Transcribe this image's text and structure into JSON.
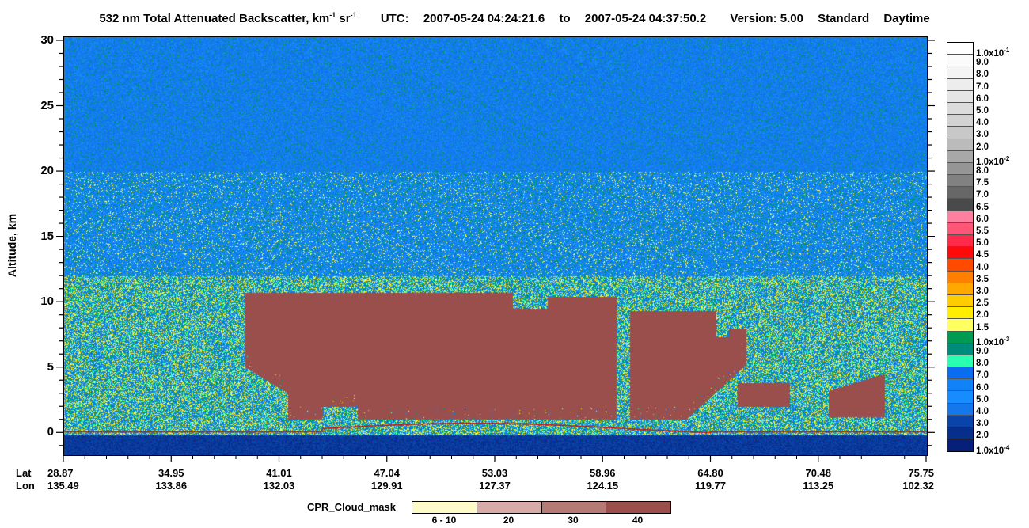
{
  "title": {
    "main": "532 nm Total Attenuated Backscatter, km",
    "exp1": "-1",
    "mid": " sr",
    "exp2": "-1",
    "utc_label": "UTC:",
    "start": "2007-05-24 04:24:21.6",
    "to": "to",
    "end": "2007-05-24 04:37:50.2",
    "version": "Version: 5.00",
    "product": "Standard",
    "mode": "Daytime"
  },
  "chart_data": {
    "type": "heatmap",
    "ylabel": "Altitude, km",
    "ylim": [
      -1.8,
      30.3
    ],
    "yticks": [
      {
        "value": 0,
        "label": "0"
      },
      {
        "value": 5,
        "label": "5"
      },
      {
        "value": 10,
        "label": "10"
      },
      {
        "value": 15,
        "label": "15"
      },
      {
        "value": 20,
        "label": "20"
      },
      {
        "value": 25,
        "label": "25"
      },
      {
        "value": 30,
        "label": "30"
      }
    ],
    "x_row_labels": {
      "lat": "Lat",
      "lon": "Lon"
    },
    "xticks": [
      {
        "lat": "28.87",
        "lon": "135.49"
      },
      {
        "lat": "34.95",
        "lon": "133.86"
      },
      {
        "lat": "41.01",
        "lon": "132.03"
      },
      {
        "lat": "47.04",
        "lon": "129.91"
      },
      {
        "lat": "53.03",
        "lon": "127.37"
      },
      {
        "lat": "58.96",
        "lon": "124.15"
      },
      {
        "lat": "64.80",
        "lon": "119.77"
      },
      {
        "lat": "70.48",
        "lon": "113.25"
      },
      {
        "lat": "75.75",
        "lon": "102.32"
      }
    ],
    "colorbar": {
      "levels": [
        {
          "label": "1.0x10",
          "exp": "-1",
          "color": "#ffffff"
        },
        {
          "label": "9.0",
          "color": "#fbfbfb"
        },
        {
          "label": "8.0",
          "color": "#f4f4f4"
        },
        {
          "label": "7.0",
          "color": "#ededed"
        },
        {
          "label": "6.0",
          "color": "#e5e5e5"
        },
        {
          "label": "5.0",
          "color": "#dcdcdc"
        },
        {
          "label": "4.0",
          "color": "#d2d2d2"
        },
        {
          "label": "3.0",
          "color": "#c8c8c8"
        },
        {
          "label": "2.0",
          "color": "#bbbbbb"
        },
        {
          "label": "1.0x10",
          "exp": "-2",
          "color": "#a8a8a8"
        },
        {
          "label": "8.0",
          "color": "#959595"
        },
        {
          "label": "7.5",
          "color": "#818181"
        },
        {
          "label": "7.0",
          "color": "#676767"
        },
        {
          "label": "6.5",
          "color": "#4a4a4a"
        },
        {
          "label": "6.0",
          "color": "#ff7fa0"
        },
        {
          "label": "5.5",
          "color": "#ff5678"
        },
        {
          "label": "5.0",
          "color": "#ff2a4a"
        },
        {
          "label": "4.5",
          "color": "#ff0a0a"
        },
        {
          "label": "4.0",
          "color": "#ff4a00"
        },
        {
          "label": "3.5",
          "color": "#ff8000"
        },
        {
          "label": "3.0",
          "color": "#ffa800"
        },
        {
          "label": "2.5",
          "color": "#ffcc00"
        },
        {
          "label": "2.0",
          "color": "#ffee00"
        },
        {
          "label": "1.5",
          "color": "#ffff60"
        },
        {
          "label": "1.0x10",
          "exp": "-3",
          "color": "#009a50"
        },
        {
          "label": "9.0",
          "color": "#008c7a"
        },
        {
          "label": "8.0",
          "color": "#28ffb0"
        },
        {
          "label": "7.0",
          "color": "#0a6cf0"
        },
        {
          "label": "6.0",
          "color": "#1282f8"
        },
        {
          "label": "5.0",
          "color": "#168cff"
        },
        {
          "label": "4.0",
          "color": "#1478ec"
        },
        {
          "label": "3.0",
          "color": "#0a44aa"
        },
        {
          "label": "2.0",
          "color": "#082e8c"
        },
        {
          "label": "1.0x10",
          "exp": "-4",
          "color": "#06207a"
        }
      ]
    },
    "cloud_mask": {
      "title": "CPR_Cloud_mask",
      "classes": [
        {
          "label": "6 - 10",
          "color": "#fffbc8"
        },
        {
          "label": "20",
          "color": "#d8aaa8"
        },
        {
          "label": "30",
          "color": "#b57a76"
        },
        {
          "label": "40",
          "color": "#9a4f4d"
        }
      ]
    }
  }
}
